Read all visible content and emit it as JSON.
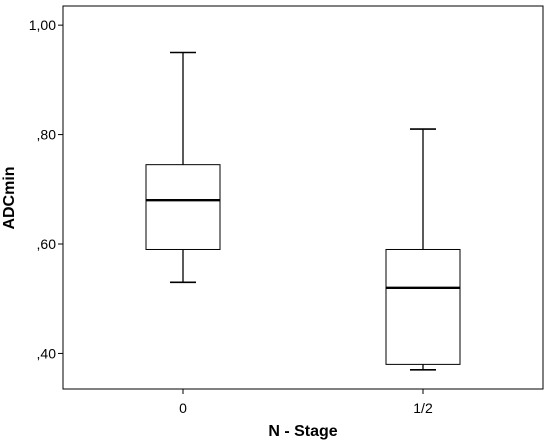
{
  "chart_data": {
    "type": "boxplot",
    "xlabel": "N - Stage",
    "ylabel": "ADCmin",
    "categories": [
      "0",
      "1/2"
    ],
    "ylim": [
      0.335,
      1.035
    ],
    "yticks": [
      {
        "value": 0.4,
        "label": ",40"
      },
      {
        "value": 0.6,
        "label": ",60"
      },
      {
        "value": 0.8,
        "label": ",80"
      },
      {
        "value": 1.0,
        "label": "1,00"
      }
    ],
    "boxes": [
      {
        "category": "0",
        "min": 0.53,
        "q1": 0.59,
        "median": 0.68,
        "q3": 0.745,
        "max": 0.95
      },
      {
        "category": "1/2",
        "min": 0.37,
        "q1": 0.38,
        "median": 0.52,
        "q3": 0.59,
        "max": 0.81
      }
    ],
    "grid": false,
    "colors": {
      "box_fill": "#ffffff",
      "stroke": "#000000"
    }
  }
}
